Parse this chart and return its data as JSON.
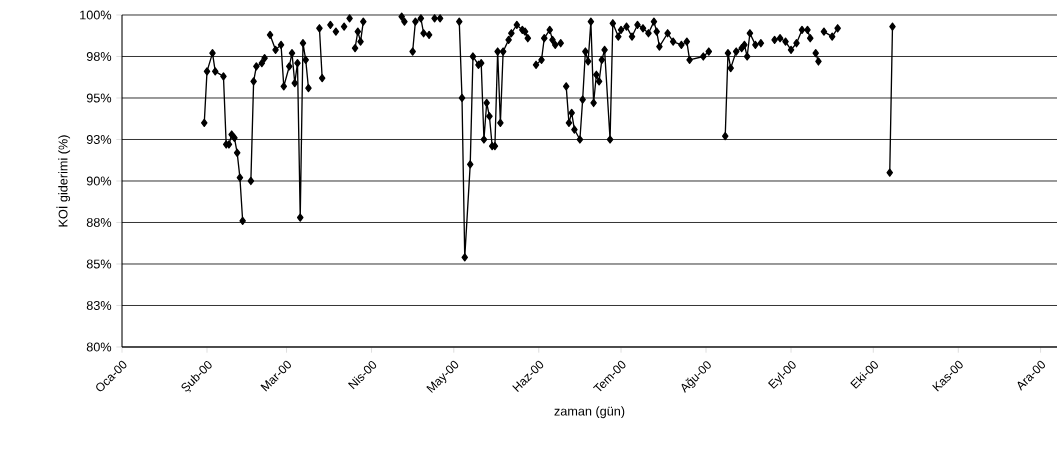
{
  "chart_data": {
    "type": "line",
    "xlabel": "zaman (gün)",
    "ylabel": "KOİ giderimi (%)",
    "x": [
      "2000-01-31",
      "2000-02-01",
      "2000-02-03",
      "2000-02-04",
      "2000-02-07",
      "2000-02-08",
      "2000-02-09",
      "2000-02-10",
      "2000-02-11",
      "2000-02-12",
      "2000-02-13",
      "2000-02-14",
      "2000-02-15",
      "2000-02-17",
      "2000-02-18",
      "2000-02-19",
      "2000-02-21",
      "2000-02-22",
      "2000-02-23",
      "2000-02-24",
      "2000-02-26",
      "2000-02-28",
      "2000-02-29",
      "2000-03-02",
      "2000-03-03",
      "2000-03-04",
      "2000-03-05",
      "2000-03-06",
      "2000-03-07",
      "2000-03-08",
      "2000-03-09",
      "2000-03-11",
      "2000-03-13",
      "2000-03-14",
      "2000-03-15",
      "2000-03-17",
      "2000-03-18",
      "2000-03-19",
      "2000-03-20",
      "2000-03-22",
      "2000-03-23",
      "2000-03-24",
      "2000-03-25",
      "2000-03-26",
      "2000-03-27",
      "2000-03-28",
      "2000-03-29",
      "2000-04-01",
      "2000-04-12",
      "2000-04-13",
      "2000-04-14",
      "2000-04-16",
      "2000-04-17",
      "2000-04-19",
      "2000-04-20",
      "2000-04-22",
      "2000-04-23",
      "2000-04-24",
      "2000-04-26",
      "2000-04-28",
      "2000-05-03",
      "2000-05-04",
      "2000-05-05",
      "2000-05-07",
      "2000-05-08",
      "2000-05-10",
      "2000-05-11",
      "2000-05-12",
      "2000-05-13",
      "2000-05-14",
      "2000-05-15",
      "2000-05-16",
      "2000-05-17",
      "2000-05-18",
      "2000-05-19",
      "2000-05-21",
      "2000-05-22",
      "2000-05-24",
      "2000-05-26",
      "2000-05-27",
      "2000-05-28",
      "2000-05-29",
      "2000-05-31",
      "2000-06-02",
      "2000-06-03",
      "2000-06-05",
      "2000-06-06",
      "2000-06-07",
      "2000-06-09",
      "2000-06-10",
      "2000-06-11",
      "2000-06-12",
      "2000-06-13",
      "2000-06-14",
      "2000-06-16",
      "2000-06-17",
      "2000-06-18",
      "2000-06-19",
      "2000-06-20",
      "2000-06-21",
      "2000-06-22",
      "2000-06-23",
      "2000-06-24",
      "2000-06-25",
      "2000-06-27",
      "2000-06-28",
      "2000-06-30",
      "2000-07-01",
      "2000-07-03",
      "2000-07-05",
      "2000-07-07",
      "2000-07-09",
      "2000-07-11",
      "2000-07-13",
      "2000-07-14",
      "2000-07-15",
      "2000-07-18",
      "2000-07-20",
      "2000-07-23",
      "2000-07-25",
      "2000-07-26",
      "2000-07-31",
      "2000-08-02",
      "2000-08-05",
      "2000-08-08",
      "2000-08-09",
      "2000-08-10",
      "2000-08-12",
      "2000-08-14",
      "2000-08-15",
      "2000-08-16",
      "2000-08-17",
      "2000-08-19",
      "2000-08-21",
      "2000-08-24",
      "2000-08-26",
      "2000-08-28",
      "2000-08-30",
      "2000-09-01",
      "2000-09-03",
      "2000-09-05",
      "2000-09-07",
      "2000-09-08",
      "2000-09-09",
      "2000-09-10",
      "2000-09-11",
      "2000-09-12",
      "2000-09-13",
      "2000-09-16",
      "2000-09-18",
      "2000-09-25",
      "2000-10-07",
      "2000-10-08"
    ],
    "values": [
      93.5,
      96.6,
      97.7,
      96.6,
      96.3,
      92.2,
      92.2,
      92.8,
      92.6,
      91.7,
      90.2,
      87.6,
      null,
      90.0,
      96.0,
      96.9,
      97.1,
      97.4,
      null,
      98.8,
      97.9,
      98.2,
      95.7,
      96.9,
      97.7,
      95.9,
      97.1,
      87.8,
      98.3,
      97.3,
      95.6,
      null,
      99.2,
      96.2,
      null,
      99.4,
      null,
      99.0,
      null,
      99.3,
      null,
      99.8,
      null,
      98.0,
      99.0,
      98.4,
      99.6,
      null,
      99.9,
      99.6,
      null,
      97.8,
      99.6,
      99.8,
      98.9,
      98.8,
      null,
      99.8,
      99.8,
      null,
      99.6,
      95.0,
      85.4,
      91.0,
      97.5,
      97.0,
      97.1,
      92.5,
      94.7,
      93.9,
      92.1,
      92.1,
      97.8,
      93.5,
      97.8,
      98.5,
      98.9,
      99.4,
      99.1,
      99.0,
      98.6,
      null,
      97.0,
      97.3,
      98.6,
      99.1,
      98.5,
      98.2,
      98.3,
      null,
      95.7,
      93.5,
      94.1,
      93.1,
      92.5,
      94.9,
      97.8,
      97.2,
      99.6,
      94.7,
      96.4,
      96.0,
      97.3,
      97.9,
      92.5,
      99.5,
      98.7,
      99.1,
      99.3,
      98.7,
      99.4,
      99.2,
      98.9,
      99.6,
      99.0,
      98.1,
      98.9,
      98.4,
      98.2,
      98.4,
      97.3,
      97.5,
      97.8,
      null,
      92.7,
      97.7,
      96.8,
      97.8,
      98.0,
      98.2,
      97.5,
      98.9,
      98.2,
      98.3,
      null,
      98.5,
      98.6,
      98.4,
      97.9,
      98.3,
      99.1,
      99.1,
      98.6,
      null,
      97.7,
      97.2,
      null,
      99.0,
      98.7,
      99.2,
      null,
      90.5,
      99.3
    ],
    "color": "#000000",
    "marker": "diamond",
    "line_style": "solid",
    "grid": "y",
    "xlim": [
      "2000-01-01",
      "2000-12-07"
    ],
    "xticks": [
      {
        "value": "2000-01-01",
        "label": "Oca-00"
      },
      {
        "value": "2000-02-01",
        "label": "Şub-00"
      },
      {
        "value": "2000-03-01",
        "label": "Mar-00"
      },
      {
        "value": "2000-04-01",
        "label": "Nis-00"
      },
      {
        "value": "2000-05-01",
        "label": "May-00"
      },
      {
        "value": "2000-06-01",
        "label": "Haz-00"
      },
      {
        "value": "2000-07-01",
        "label": "Tem-00"
      },
      {
        "value": "2000-08-01",
        "label": "Ağu-00"
      },
      {
        "value": "2000-09-01",
        "label": "Eyl-00"
      },
      {
        "value": "2000-10-01",
        "label": "Eki-00"
      },
      {
        "value": "2000-11-01",
        "label": "Kas-00"
      },
      {
        "value": "2000-12-01",
        "label": "Ara-00"
      }
    ],
    "ylim": [
      80,
      100
    ],
    "yticks": [
      {
        "value": 80,
        "label": "80%"
      },
      {
        "value": 82.5,
        "label": "83%"
      },
      {
        "value": 85,
        "label": "85%"
      },
      {
        "value": 87.5,
        "label": "88%"
      },
      {
        "value": 90,
        "label": "90%"
      },
      {
        "value": 92.5,
        "label": "93%"
      },
      {
        "value": 95,
        "label": "95%"
      },
      {
        "value": 97.5,
        "label": "98%"
      },
      {
        "value": 100,
        "label": "100%"
      }
    ]
  }
}
